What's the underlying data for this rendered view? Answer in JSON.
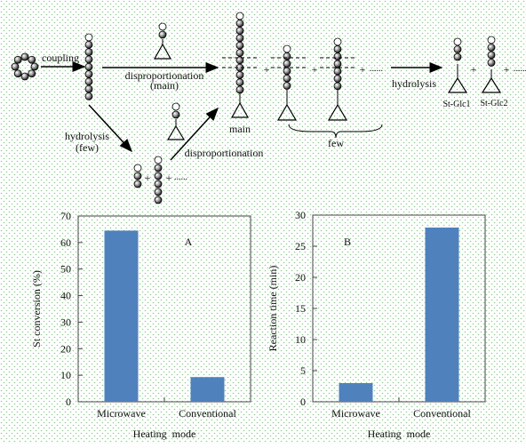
{
  "scheme": {
    "coupling": "coupling",
    "disproportionation_main_1": "disproportionation",
    "disproportionation_main_2": "(main)",
    "hydrolysis_few_1": "hydrolysis",
    "hydrolysis_few_2": "(few)",
    "disproportionation": "disproportionation",
    "main": "main",
    "few": "few",
    "hydrolysis": "hydrolysis",
    "product_1": "St-Glc1",
    "product_2": "St-Glc2",
    "plus": "+",
    "more": "......"
  },
  "chart_data": [
    {
      "type": "bar",
      "annotation": "A",
      "x_label": "Heating  mode",
      "y_label": "St conversion (%)",
      "categories": [
        "Microwave",
        "Conventional"
      ],
      "values": [
        64.5,
        9.3
      ],
      "color": "#4f81bd",
      "ylim": [
        0,
        70
      ],
      "yticks": [
        0,
        10,
        20,
        30,
        40,
        50,
        60,
        70
      ]
    },
    {
      "type": "bar",
      "annotation": "B",
      "x_label": "Heating  mode",
      "y_label": "Reaction time (min)",
      "categories": [
        "Microwave",
        "Conventional"
      ],
      "values": [
        3,
        28
      ],
      "color": "#4f81bd",
      "ylim": [
        0,
        30
      ],
      "yticks": [
        0,
        5,
        10,
        15,
        20,
        25,
        30
      ]
    }
  ]
}
